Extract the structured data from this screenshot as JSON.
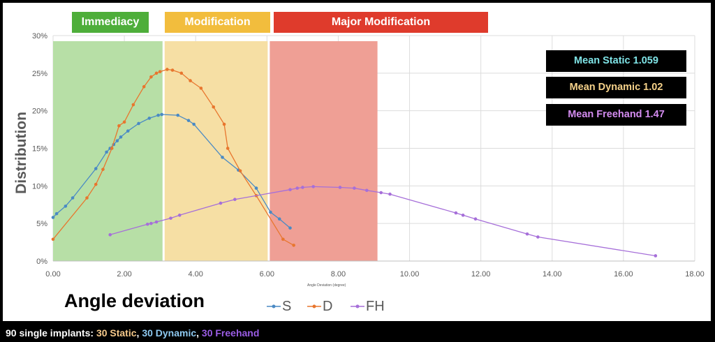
{
  "bands": [
    {
      "label": "Immediacy",
      "from": 0,
      "to": 3.1,
      "fill": "#b7dfa6",
      "label_bg": "#4eae3a"
    },
    {
      "label": "Modification",
      "from": 3.1,
      "to": 6.05,
      "fill": "#f6dfa4",
      "label_bg": "#f2bd3d"
    },
    {
      "label": "Major Modification",
      "from": 6.05,
      "to": 9.1,
      "fill": "#ef9f95",
      "label_bg": "#df3b2c"
    }
  ],
  "stats": [
    {
      "text": "Mean Static 1.059",
      "color": "#7fe3e6"
    },
    {
      "text": "Mean Dynamic 1.02",
      "color": "#f6d28a"
    },
    {
      "text": "Mean Freehand 1.47",
      "color": "#d48cf0"
    }
  ],
  "ylabel": "Distribution",
  "xlabel": "Angle Deviation (degree)",
  "caption": "Angle deviation",
  "footer": {
    "prefix": "90 single implants: ",
    "static": "30 Static",
    "sep1": ", ",
    "dynamic": "30 Dynamic",
    "sep2": ", ",
    "freehand": "30 Freehand",
    "static_color": "#f6c98a",
    "dynamic_color": "#8ec9f0",
    "freehand_color": "#9b5de5"
  },
  "chart_data": {
    "type": "line",
    "xlabel": "Angle Deviation (degree)",
    "ylabel": "Distribution",
    "xlim": [
      0,
      18
    ],
    "ylim": [
      0,
      30
    ],
    "x_ticks": [
      "0.00",
      "2.00",
      "4.00",
      "6.00",
      "8.00",
      "10.00",
      "12.00",
      "14.00",
      "16.00",
      "18.00"
    ],
    "y_ticks": [
      "0%",
      "5%",
      "10%",
      "15%",
      "20%",
      "25%",
      "30%"
    ],
    "grid": true,
    "series": [
      {
        "name": "S",
        "color": "#4a8ac4",
        "x": [
          0.0,
          0.1,
          0.35,
          0.55,
          1.2,
          1.5,
          1.6,
          1.7,
          1.8,
          1.9,
          2.1,
          2.4,
          2.7,
          2.95,
          3.05,
          3.5,
          3.8,
          3.95,
          4.75,
          5.2,
          5.7,
          6.1,
          6.35,
          6.65
        ],
        "y": [
          5.8,
          6.3,
          7.3,
          8.4,
          12.3,
          14.5,
          15.0,
          15.5,
          16.0,
          16.5,
          17.3,
          18.3,
          19.0,
          19.4,
          19.5,
          19.4,
          18.7,
          18.2,
          13.8,
          12.1,
          9.7,
          6.5,
          5.6,
          4.4
        ]
      },
      {
        "name": "D",
        "color": "#e8762e",
        "x": [
          0.0,
          0.95,
          1.2,
          1.4,
          1.65,
          1.85,
          2.0,
          2.25,
          2.55,
          2.75,
          2.9,
          3.0,
          3.2,
          3.35,
          3.6,
          3.85,
          4.15,
          4.5,
          4.8,
          4.9,
          5.25,
          5.7,
          6.45,
          6.75
        ],
        "y": [
          2.9,
          8.4,
          10.2,
          12.2,
          15.0,
          18.0,
          18.5,
          20.8,
          23.2,
          24.5,
          25.0,
          25.2,
          25.5,
          25.4,
          25.0,
          24.0,
          23.0,
          20.5,
          18.2,
          15.0,
          12.0,
          8.7,
          2.9,
          2.1
        ]
      },
      {
        "name": "FH",
        "color": "#a66fd9",
        "x": [
          1.6,
          2.65,
          2.75,
          2.9,
          3.3,
          3.55,
          4.7,
          5.1,
          6.65,
          6.85,
          7.0,
          7.3,
          8.05,
          8.45,
          8.8,
          9.2,
          9.45,
          11.3,
          11.5,
          11.85,
          13.3,
          13.6,
          16.9
        ],
        "y": [
          3.5,
          4.9,
          5.0,
          5.2,
          5.7,
          6.1,
          7.7,
          8.2,
          9.5,
          9.7,
          9.8,
          9.9,
          9.8,
          9.7,
          9.4,
          9.1,
          8.9,
          6.4,
          6.1,
          5.6,
          3.6,
          3.2,
          0.7
        ]
      }
    ]
  }
}
